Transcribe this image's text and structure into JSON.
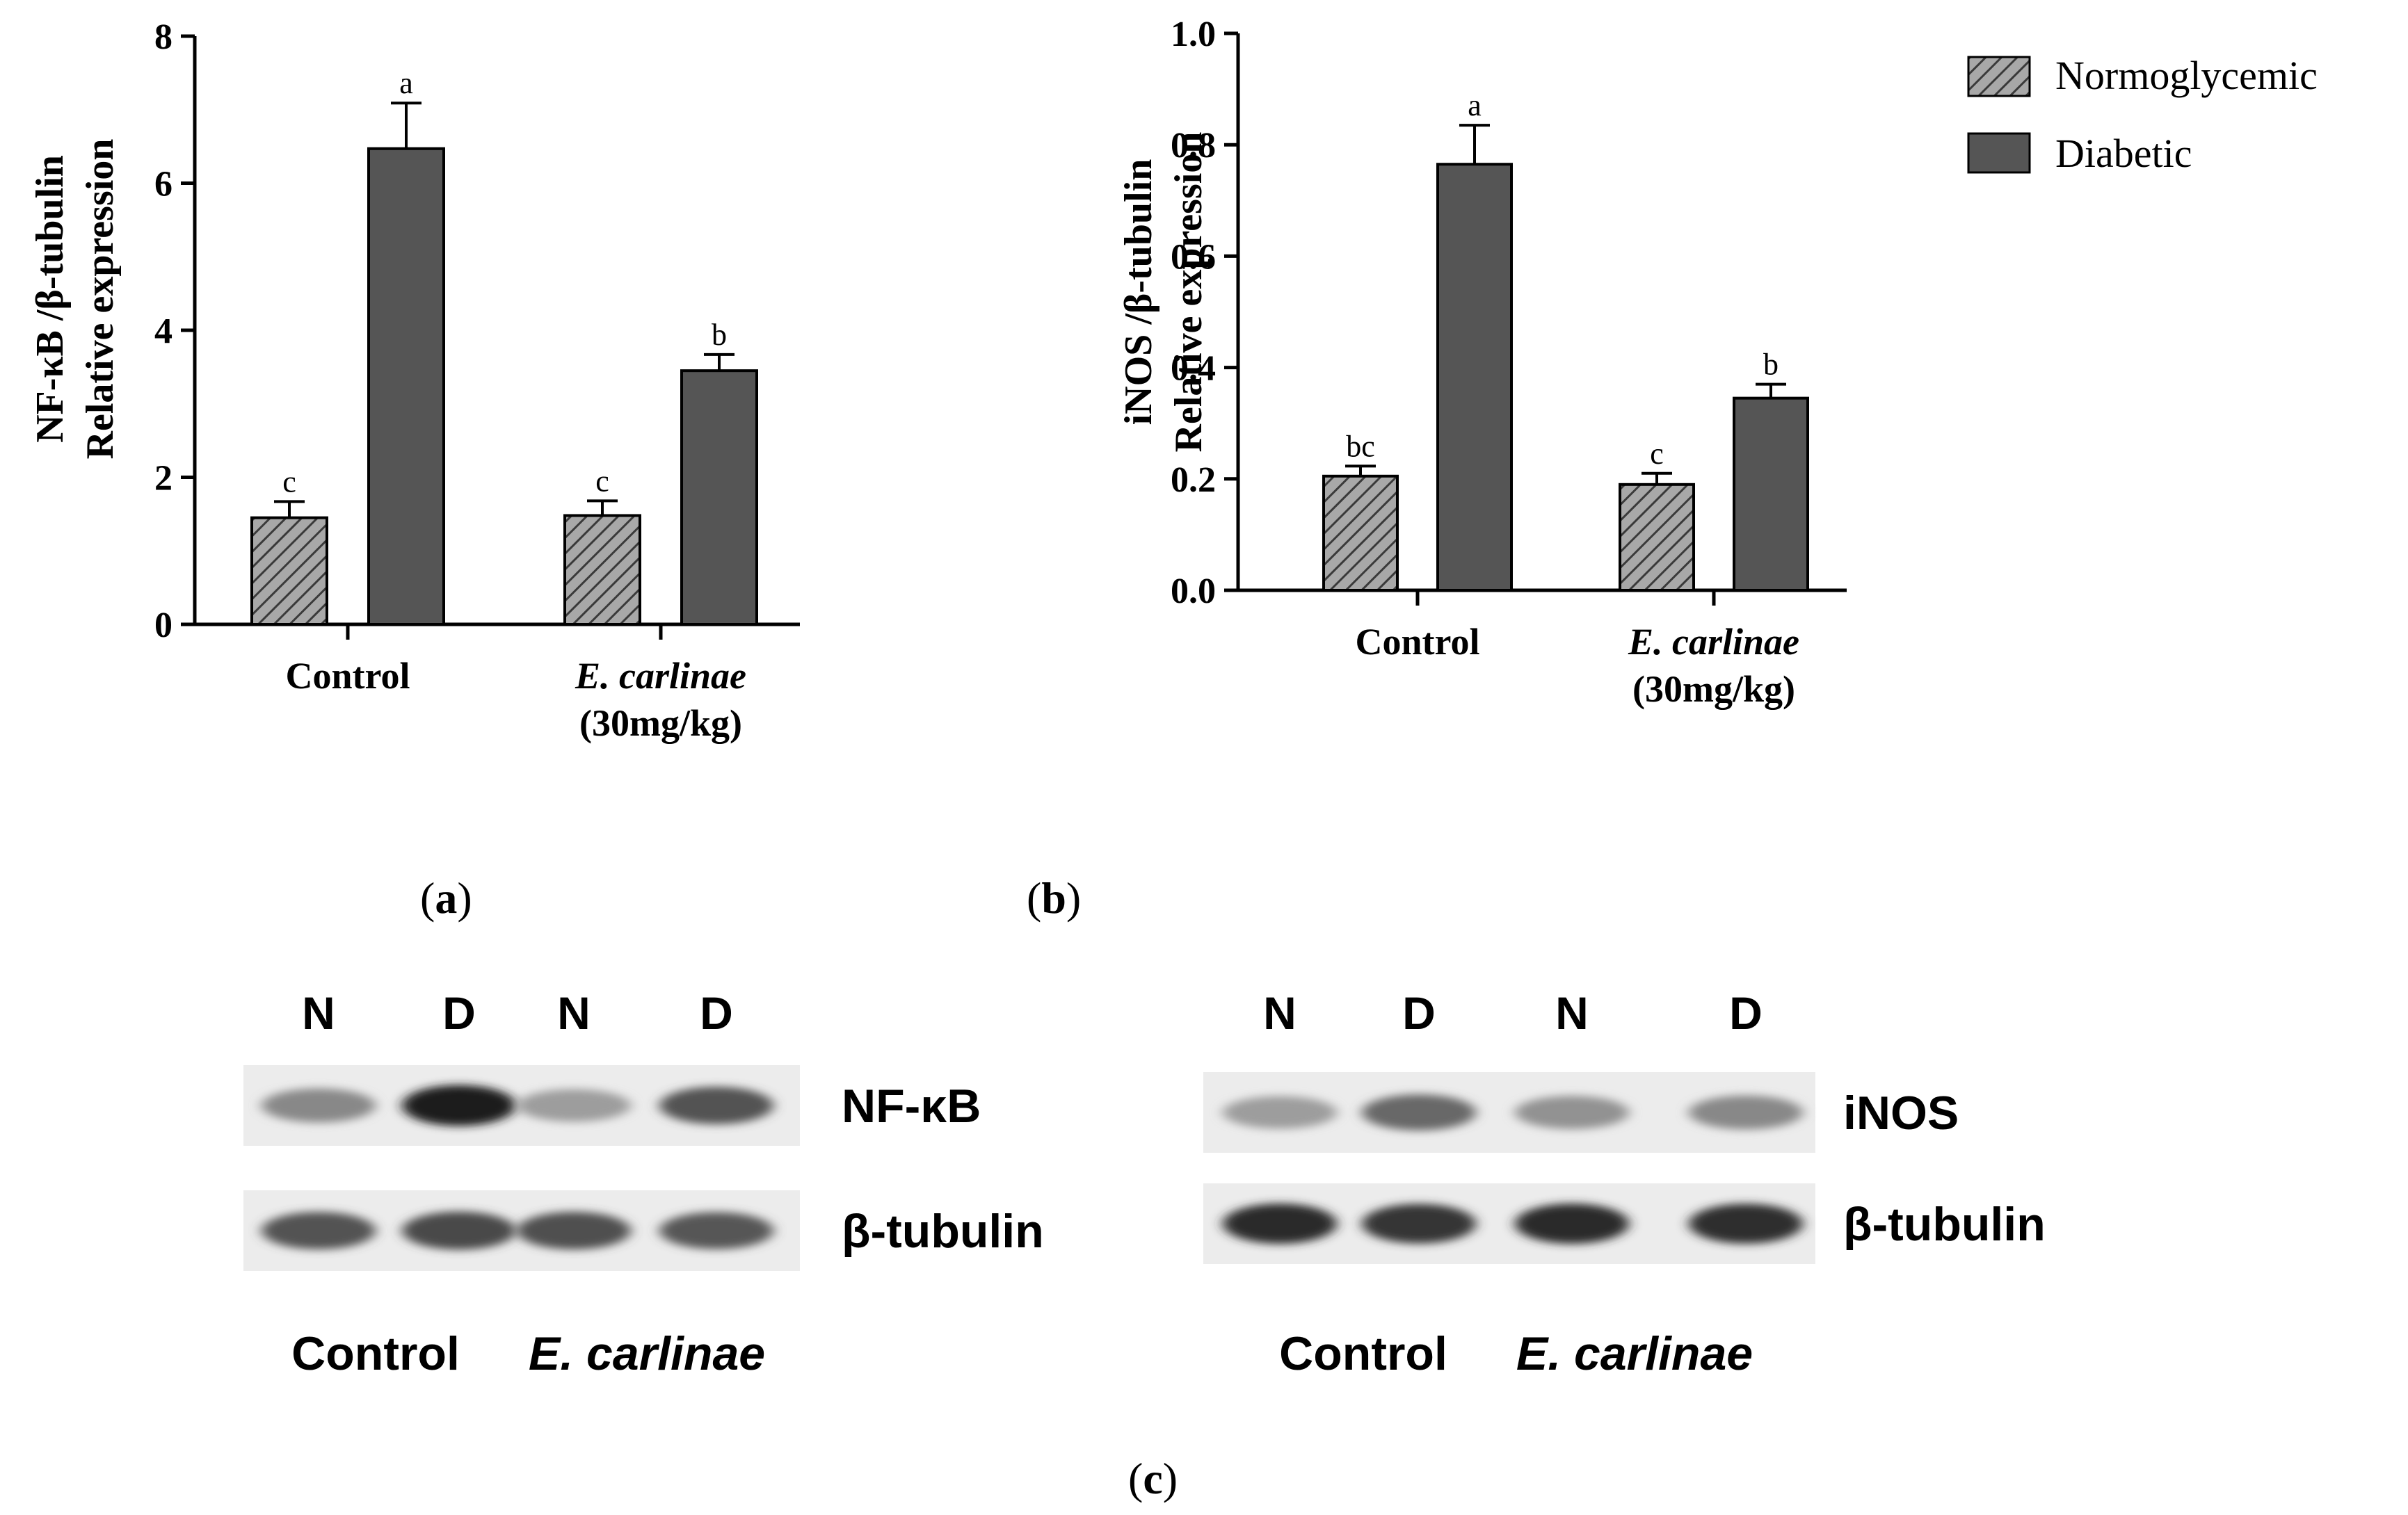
{
  "chart_data": [
    {
      "type": "bar",
      "panel": "a",
      "ylabel_line1": "NF-κB /β-tubulin",
      "ylabel_line2": "Relative expression",
      "ylim": [
        0,
        8
      ],
      "yticks": [
        "0",
        "2",
        "4",
        "6",
        "8"
      ],
      "categories": [
        {
          "line1": "Control",
          "line1_italic": false,
          "line2": ""
        },
        {
          "line1": "E. carlinae",
          "line1_italic": true,
          "line2": "(30mg/kg)"
        }
      ],
      "series": [
        {
          "name": "Normoglycemic",
          "values": [
            1.45,
            1.48
          ],
          "errors": [
            0.22,
            0.2
          ],
          "letters": [
            "c",
            "c"
          ]
        },
        {
          "name": "Diabetic",
          "values": [
            6.47,
            3.45
          ],
          "errors": [
            0.62,
            0.22
          ],
          "letters": [
            "a",
            "b"
          ]
        }
      ]
    },
    {
      "type": "bar",
      "panel": "b",
      "ylabel_line1": "iNOS /β-tubulin",
      "ylabel_line2": "Relative expression",
      "ylim": [
        0,
        1.0
      ],
      "yticks": [
        "0.0",
        "0.2",
        "0.4",
        "0.6",
        "0.8",
        "1.0"
      ],
      "categories": [
        {
          "line1": "Control",
          "line1_italic": false,
          "line2": ""
        },
        {
          "line1": "E. carlinae",
          "line1_italic": true,
          "line2": "(30mg/kg)"
        }
      ],
      "series": [
        {
          "name": "Normoglycemic",
          "values": [
            0.205,
            0.19
          ],
          "errors": [
            0.018,
            0.02
          ],
          "letters": [
            "bc",
            "c"
          ]
        },
        {
          "name": "Diabetic",
          "values": [
            0.765,
            0.345
          ],
          "errors": [
            0.07,
            0.025
          ],
          "letters": [
            "a",
            "b"
          ]
        }
      ]
    }
  ],
  "legend": {
    "items": [
      {
        "label": "Normoglycemic",
        "pattern": "hatched-gray"
      },
      {
        "label": "Diabetic",
        "pattern": "solid-dark-gray"
      }
    ]
  },
  "colors": {
    "normoglycemic_fill": "#a8a8a8",
    "hatch": "#3a3a3a",
    "diabetic_fill": "#555555",
    "axis": "#000000"
  },
  "labels": {
    "a": "a",
    "b": "b",
    "c": "c"
  },
  "blots": [
    {
      "lanes": [
        "N",
        "D",
        "N",
        "D"
      ],
      "rows": [
        {
          "label": "NF-κB",
          "intensity": [
            0.45,
            0.95,
            0.35,
            0.7
          ]
        },
        {
          "label": "β-tubulin",
          "intensity": [
            0.7,
            0.75,
            0.72,
            0.68
          ]
        }
      ],
      "groups": [
        "Control",
        "E. carlinae"
      ]
    },
    {
      "lanes": [
        "N",
        "D",
        "N",
        "D"
      ],
      "rows": [
        {
          "label": "iNOS",
          "intensity": [
            0.35,
            0.6,
            0.4,
            0.45
          ]
        },
        {
          "label": "β-tubulin",
          "intensity": [
            0.9,
            0.85,
            0.9,
            0.88
          ]
        }
      ],
      "groups": [
        "Control",
        "E. carlinae"
      ]
    }
  ]
}
